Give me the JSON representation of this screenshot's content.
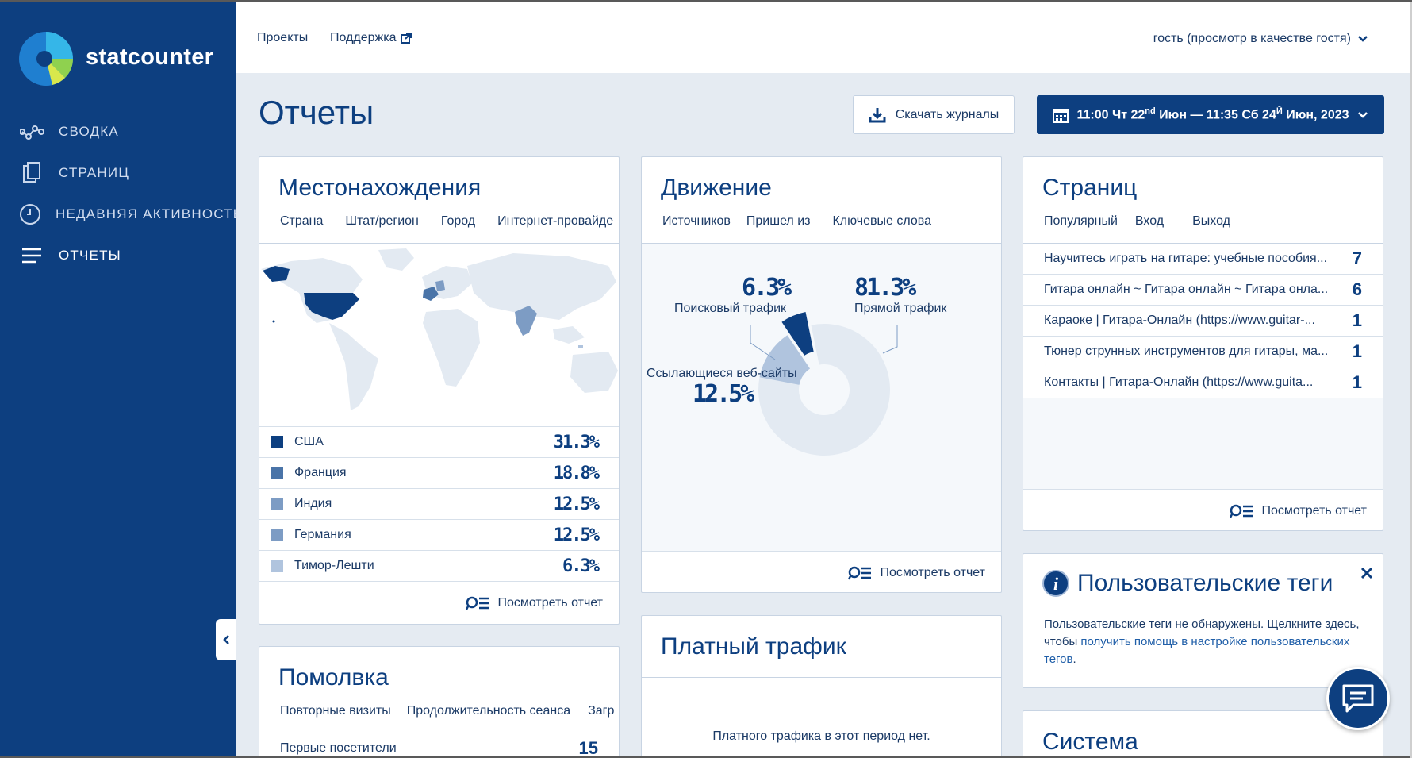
{
  "brand": {
    "name": "statcounter"
  },
  "nav": {
    "items": [
      {
        "label": "СВОДКА",
        "icon": "graph-icon"
      },
      {
        "label": "СТРАНИЦ",
        "icon": "pages-icon"
      },
      {
        "label": "НЕДАВНЯЯ АКТИВНОСТЬ",
        "icon": "clock-icon"
      },
      {
        "label": "ОТЧЕТЫ",
        "icon": "list-icon"
      }
    ]
  },
  "topbar": {
    "projects": "Проекты",
    "support": "Поддержка",
    "user": "гость (просмотр в качестве гостя)"
  },
  "header": {
    "title": "Отчеты",
    "download_label": "Скачать журналы",
    "date_range": {
      "start_time": "11:00 Чт 22",
      "start_suffix": "nd",
      "start_month": " Июн — 11:35 Сб 24",
      "end_suffix": "Й",
      "end_month": " Июн, 2023"
    }
  },
  "locations": {
    "title": "Местонахождения",
    "tabs": [
      "Страна",
      "Штат/регион",
      "Город",
      "Интернет-провайде"
    ],
    "rows": [
      {
        "name": "США",
        "pct": "31.3%",
        "color": "#0d3f80"
      },
      {
        "name": "Франция",
        "pct": "18.8%",
        "color": "#4a74a8"
      },
      {
        "name": "Индия",
        "pct": "12.5%",
        "color": "#7d9cc4"
      },
      {
        "name": "Германия",
        "pct": "12.5%",
        "color": "#7d9cc4"
      },
      {
        "name": "Тимор-Лешти",
        "pct": "6.3%",
        "color": "#b0c4de"
      }
    ],
    "view_report": "Посмотреть отчет"
  },
  "traffic": {
    "title": "Движение",
    "tabs": [
      "Источников",
      "Пришел из",
      "Ключевые слова"
    ],
    "search_pct": "6.3%",
    "search_label": "Поисковый трафик",
    "direct_pct": "81.3%",
    "direct_label": "Прямой трафик",
    "ref_label": "Ссылающиеся веб-сайты",
    "ref_pct": "12.5%",
    "view_report": "Посмотреть отчет"
  },
  "pages": {
    "title": "Страниц",
    "tabs": [
      "Популярный",
      "Вход",
      "Выход"
    ],
    "rows": [
      {
        "title": "Научитесь играть на гитаре: учебные пособия...",
        "count": "7"
      },
      {
        "title": "Гитара онлайн ~ Гитара онлайн ~ Гитара онла...",
        "count": "6"
      },
      {
        "title": "Караоке | Гитара-Онлайн (https://www.guitar-...",
        "count": "1"
      },
      {
        "title": "Тюнер струнных инструментов для гитары, ма...",
        "count": "1"
      },
      {
        "title": "Контакты | Гитара-Онлайн (https://www.guita...",
        "count": "1"
      }
    ],
    "view_report": "Посмотреть отчет"
  },
  "tags": {
    "title": "Пользовательские теги",
    "text_before": "Пользовательские теги не обнаружены. Щелкните здесь, чтобы ",
    "link": "получить помощь в настройке пользовательских тегов",
    "text_after": "."
  },
  "loyalty": {
    "title": "Помолвка",
    "tabs": [
      "Повторные визиты",
      "Продолжительность сеанса",
      "Загр"
    ],
    "first_row_label": "Первые посетители",
    "first_row_value": "15"
  },
  "paid": {
    "title": "Платный трафик",
    "empty": "Платного трафика в этот период нет."
  },
  "system": {
    "title": "Система"
  },
  "chart_data": {
    "type": "pie",
    "categories": [
      "Прямой трафик",
      "Ссылающиеся веб-сайты",
      "Поисковый трафик"
    ],
    "values": [
      81.3,
      12.5,
      6.3
    ],
    "colors": [
      "#e3eaf2",
      "#b0c4de",
      "#0d3f80"
    ]
  }
}
